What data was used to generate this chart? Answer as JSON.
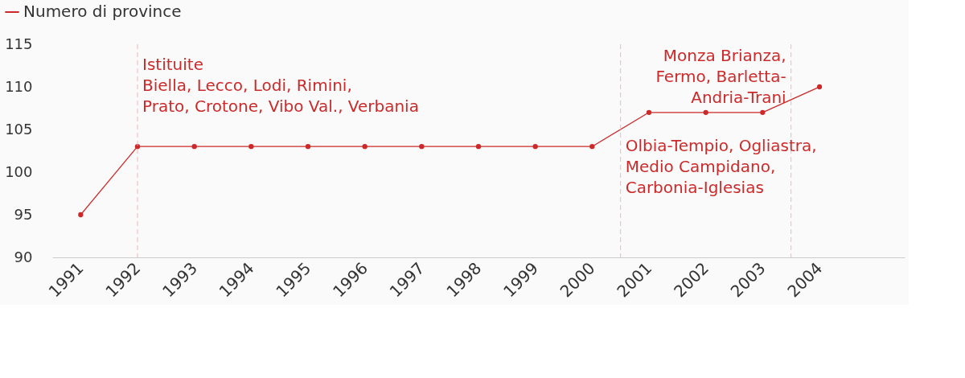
{
  "chart_data": {
    "type": "line",
    "x": [
      1991,
      1992,
      1993,
      1994,
      1995,
      1996,
      1997,
      1998,
      1999,
      2000,
      2001,
      2002,
      2003,
      2004
    ],
    "series": [
      {
        "name": "Numero di province",
        "color": "#cc2a2a",
        "values": [
          95,
          103,
          103,
          103,
          103,
          103,
          103,
          103,
          103,
          103,
          107,
          107,
          107,
          110
        ]
      }
    ],
    "xlim": [
      1990.5,
      2005.5
    ],
    "xticks": [
      1991,
      1992,
      1993,
      1994,
      1995,
      1996,
      1997,
      1998,
      1999,
      2000,
      2001,
      2002,
      2003,
      2004
    ],
    "ylim": [
      90,
      115
    ],
    "yticks": [
      90,
      95,
      100,
      105,
      110,
      115
    ],
    "ref_lines": [
      {
        "axis": "x",
        "value": 1992,
        "color": "#f4b6b6",
        "line_style": "dashed"
      },
      {
        "axis": "x",
        "value": 2000.5,
        "color": "#f4b6b6",
        "line_style": "dashed"
      },
      {
        "axis": "x",
        "value": 2003.5,
        "color": "#f4b6b6",
        "line_style": "dashed"
      }
    ],
    "annotations": [
      {
        "text": "Istituite\nBiella, Lecco, Lodi, Rimini,\nPrato, Crotone, Vibo Val., Verbania",
        "x": 1992,
        "y": 113.5
      },
      {
        "text": "Olbia-Tempio, Ogliastra,\nMedio Campidano,\nCarbonia-Iglesias",
        "x": 2000.5,
        "y": 104
      },
      {
        "text": "Monza Brianza,\nFermo, Barletta-\nAndria-Trani",
        "x": 2003.5,
        "y": 114.5
      }
    ],
    "legend": "top left",
    "marker": "circle",
    "line_style": "solid",
    "grid": false
  }
}
